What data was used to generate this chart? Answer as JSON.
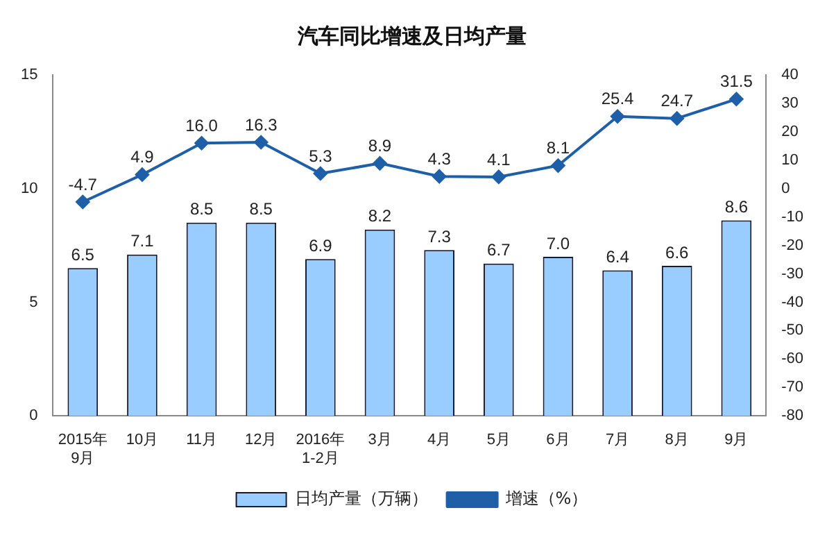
{
  "chart_data": {
    "type": "bar",
    "title": "汽车同比增速及日均产量",
    "categories": [
      "2015年\n9月",
      "10月",
      "11月",
      "12月",
      "2016年\n1-2月",
      "3月",
      "4月",
      "5月",
      "6月",
      "7月",
      "8月",
      "9月"
    ],
    "series": [
      {
        "name": "日均产量（万辆）",
        "color": "#99ccff",
        "values": [
          6.5,
          7.1,
          8.5,
          8.5,
          6.9,
          8.2,
          7.3,
          6.7,
          7.0,
          6.4,
          6.6,
          8.6
        ],
        "value_labels": [
          "6.5",
          "7.1",
          "8.5",
          "8.5",
          "6.9",
          "8.2",
          "7.3",
          "6.7",
          "7.0",
          "6.4",
          "6.6",
          "8.6"
        ]
      },
      {
        "name": "增速（%）",
        "type": "line",
        "axis": "y2",
        "color": "#1f5fa8",
        "marker": "diamond",
        "values": [
          -4.7,
          4.9,
          16.0,
          16.3,
          5.3,
          8.9,
          4.3,
          4.1,
          8.1,
          25.4,
          24.7,
          31.5
        ],
        "value_labels": [
          "-4.7",
          "4.9",
          "16.0",
          "16.3",
          "5.3",
          "8.9",
          "4.3",
          "4.1",
          "8.1",
          "25.4",
          "24.7",
          "31.5"
        ]
      }
    ],
    "ylim": [
      0,
      15
    ],
    "yticks": [
      0,
      5,
      10,
      15
    ],
    "y2lim": [
      -80,
      40
    ],
    "y2ticks": [
      -80,
      -70,
      -60,
      -50,
      -40,
      -30,
      -20,
      -10,
      0,
      10,
      20,
      30,
      40
    ],
    "legend": "bottom",
    "grid": false
  }
}
